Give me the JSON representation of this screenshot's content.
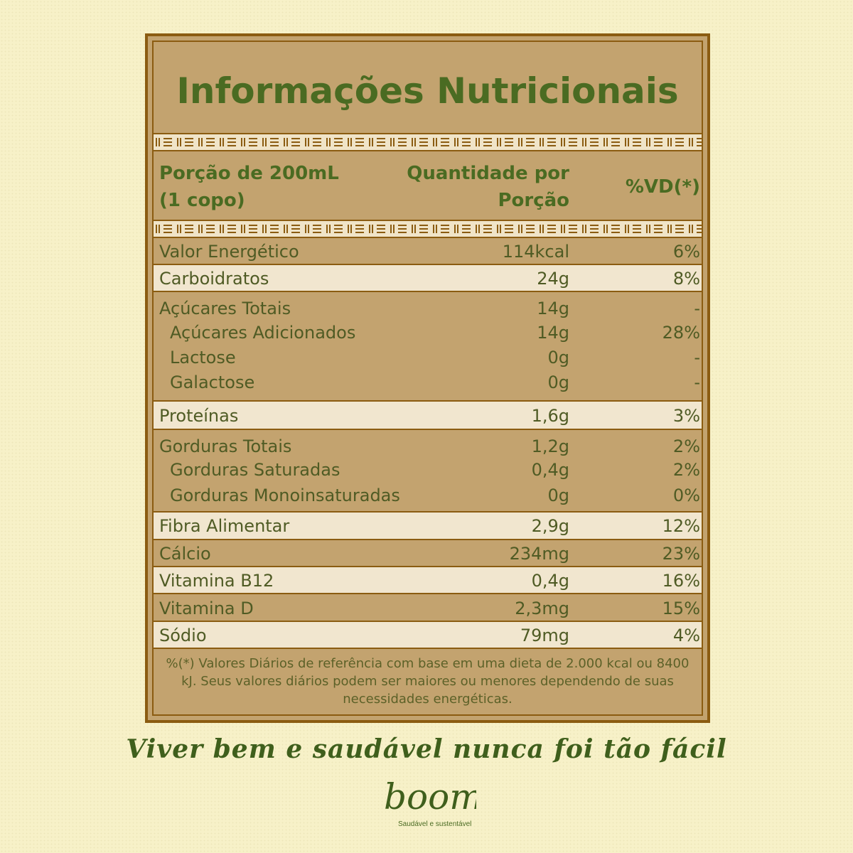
{
  "title": "Informações Nutricionais",
  "header": {
    "portion_line1": "Porção de 200mL",
    "portion_line2": "(1 copo)",
    "qty_line1": "Quantidade por",
    "qty_line2": "Porção",
    "vd": "%VD(*)"
  },
  "rows": [
    {
      "name": "Valor Energético",
      "qty": "114kcal",
      "vd": "6%"
    },
    {
      "name": "Carboidratos",
      "qty": "24g",
      "vd": "8%"
    },
    {
      "name": "Açúcares Totais",
      "qty": "14g",
      "vd": "-"
    },
    {
      "name": "Açúcares Adicionados",
      "qty": "14g",
      "vd": "28%"
    },
    {
      "name": "Lactose",
      "qty": "0g",
      "vd": "-"
    },
    {
      "name": "Galactose",
      "qty": "0g",
      "vd": "-"
    },
    {
      "name": "Proteínas",
      "qty": "1,6g",
      "vd": "3%"
    },
    {
      "name": "Gorduras Totais",
      "qty": "1,2g",
      "vd": "2%"
    },
    {
      "name": "Gorduras Saturadas",
      "qty": "0,4g",
      "vd": "2%"
    },
    {
      "name": "Gorduras Monoinsaturadas",
      "qty": "0g",
      "vd": "0%"
    },
    {
      "name": "Fibra Alimentar",
      "qty": "2,9g",
      "vd": "12%"
    },
    {
      "name": "Cálcio",
      "qty": "234mg",
      "vd": "23%"
    },
    {
      "name": "Vitamina B12",
      "qty": "0,4g",
      "vd": "16%"
    },
    {
      "name": "Vitamina D",
      "qty": "2,3mg",
      "vd": "15%"
    },
    {
      "name": "Sódio",
      "qty": "79mg",
      "vd": "4%"
    }
  ],
  "footnote": "%(*) Valores Diários de referência com base em uma dieta de 2.000 kcal ou 8400 kJ. Seus valores diários podem ser maiores ou menores dependendo de suas necessidades energéticas.",
  "slogan": "Viver bem e saudável nunca foi tão fácil",
  "brand": {
    "name": "boomi",
    "tagline": "Saudável e sustentável"
  },
  "colors": {
    "background": "#f7f1c8",
    "card": "#c3a36f",
    "light_row": "#f1e6cf",
    "border": "#8b5c11",
    "green": "#4a6b22"
  }
}
